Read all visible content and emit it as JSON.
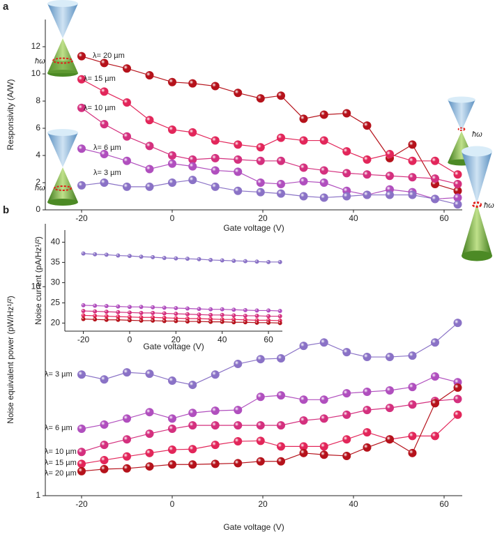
{
  "chart_data": [
    {
      "type": "line",
      "panel_label": "a",
      "xlabel": "Gate voltage (V)",
      "ylabel": "Responsivity (A/W)",
      "xlim": [
        -28,
        64
      ],
      "xticks": [
        -20,
        0,
        20,
        40,
        60
      ],
      "ylim": [
        0,
        14
      ],
      "yticks": [
        0,
        2,
        4,
        6,
        8,
        10,
        12
      ],
      "x": [
        -20,
        -15,
        -10,
        -5,
        0,
        4.5,
        9.5,
        14.5,
        19.5,
        24,
        29,
        33.5,
        38.5,
        43,
        48,
        53,
        58,
        63
      ],
      "series": [
        {
          "name": "λ= 20 µm",
          "color": "#b5121b",
          "values": [
            11.3,
            10.8,
            10.4,
            9.9,
            9.4,
            9.3,
            9.1,
            8.6,
            8.2,
            8.4,
            6.7,
            7.0,
            7.1,
            6.2,
            3.8,
            4.8,
            1.9,
            1.4
          ]
        },
        {
          "name": "λ= 15 µm",
          "color": "#e2265a",
          "values": [
            9.6,
            8.7,
            7.9,
            6.6,
            5.9,
            5.7,
            5.1,
            4.8,
            4.6,
            5.3,
            5.1,
            5.1,
            4.3,
            3.7,
            4.1,
            3.6,
            3.6,
            2.6
          ]
        },
        {
          "name": "λ= 10 µm",
          "color": "#d4307e",
          "values": [
            7.5,
            6.3,
            5.4,
            4.7,
            4.0,
            3.7,
            3.8,
            3.7,
            3.6,
            3.6,
            3.1,
            2.9,
            2.7,
            2.6,
            2.5,
            2.4,
            2.3,
            1.9
          ]
        },
        {
          "name": "λ= 6 µm",
          "color": "#b04fbe",
          "values": [
            4.5,
            4.1,
            3.6,
            3.0,
            3.4,
            3.2,
            2.9,
            2.8,
            2.0,
            1.9,
            2.1,
            2.0,
            1.4,
            1.1,
            1.5,
            1.3,
            0.8,
            0.9
          ]
        },
        {
          "name": "λ= 3 µm",
          "color": "#8a72c6",
          "values": [
            1.8,
            2.0,
            1.7,
            1.7,
            2.0,
            2.2,
            1.7,
            1.4,
            1.3,
            1.2,
            1.0,
            0.9,
            1.0,
            1.1,
            1.1,
            1.1,
            0.8,
            0.4
          ]
        }
      ]
    },
    {
      "type": "line",
      "panel_label": "b",
      "xlabel": "Gate voltage (V)",
      "ylabel": "Noise equivalent power (pW/Hz¹/²)",
      "log_y": true,
      "xlim": [
        -28,
        64
      ],
      "xticks": [
        -20,
        0,
        20,
        40,
        60
      ],
      "ylim": [
        1,
        20
      ],
      "yticks": [
        1,
        10
      ],
      "x": [
        -20,
        -15,
        -10,
        -5,
        0,
        4.5,
        9.5,
        14.5,
        19.5,
        24,
        29,
        33.5,
        38.5,
        43,
        48,
        53,
        58,
        63
      ],
      "series": [
        {
          "name": "λ= 3 µm",
          "color": "#8a72c6",
          "values": [
            3.8,
            3.6,
            3.89,
            3.83,
            3.55,
            3.39,
            3.8,
            4.27,
            4.5,
            4.54,
            5.21,
            5.41,
            4.86,
            4.61,
            4.61,
            4.68,
            5.41,
            6.71
          ]
        },
        {
          "name": "λ= 6 µm",
          "color": "#b04fbe",
          "values": [
            2.09,
            2.19,
            2.34,
            2.51,
            2.34,
            2.49,
            2.55,
            2.57,
            2.97,
            3.02,
            2.88,
            2.88,
            3.09,
            3.14,
            3.19,
            3.31,
            3.72,
            3.49
          ]
        },
        {
          "name": "λ= 10 µm",
          "color": "#d4307e",
          "values": [
            1.62,
            1.75,
            1.86,
            1.98,
            2.09,
            2.17,
            2.17,
            2.17,
            2.17,
            2.17,
            2.29,
            2.34,
            2.44,
            2.57,
            2.63,
            2.73,
            2.84,
            2.9
          ]
        },
        {
          "name": "λ= 15 µm",
          "color": "#e2265a",
          "values": [
            1.42,
            1.48,
            1.54,
            1.6,
            1.66,
            1.67,
            1.75,
            1.82,
            1.83,
            1.72,
            1.72,
            1.72,
            1.86,
            2.01,
            1.86,
            1.93,
            1.93,
            2.44
          ]
        },
        {
          "name": "λ= 20 µm",
          "color": "#b5121b",
          "values": [
            1.31,
            1.34,
            1.35,
            1.38,
            1.41,
            1.41,
            1.42,
            1.43,
            1.46,
            1.46,
            1.6,
            1.57,
            1.55,
            1.7,
            1.86,
            1.6,
            2.77,
            3.29
          ]
        }
      ]
    },
    {
      "type": "line",
      "xlabel": "Gate voltage (V)",
      "ylabel": "Noise current (pA/Hz¹/²)",
      "xlim": [
        -28,
        66
      ],
      "xticks": [
        -20,
        0,
        20,
        40,
        60
      ],
      "ylim": [
        18,
        43
      ],
      "yticks": [
        20,
        25,
        30,
        35,
        40
      ],
      "x": [
        -20,
        -15,
        -10,
        -5,
        0,
        5,
        10,
        15,
        20,
        25,
        30,
        35,
        40,
        45,
        50,
        55,
        60,
        65
      ],
      "series": [
        {
          "color": "#8a72c6",
          "values": [
            37.2,
            37.0,
            36.9,
            36.7,
            36.6,
            36.4,
            36.3,
            36.1,
            36.0,
            35.9,
            35.8,
            35.6,
            35.5,
            35.4,
            35.3,
            35.2,
            35.1,
            35.1
          ]
        },
        {
          "color": "#b04fbe",
          "values": [
            24.4,
            24.3,
            24.2,
            24.1,
            24.0,
            24.0,
            23.9,
            23.8,
            23.7,
            23.6,
            23.5,
            23.4,
            23.4,
            23.3,
            23.2,
            23.1,
            23.1,
            23.0
          ]
        },
        {
          "color": "#d4307e",
          "values": [
            23.0,
            22.9,
            22.8,
            22.7,
            22.6,
            22.5,
            22.5,
            22.4,
            22.3,
            22.2,
            22.1,
            22.0,
            22.0,
            21.9,
            21.8,
            21.8,
            21.7,
            21.7
          ]
        },
        {
          "color": "#e2265a",
          "values": [
            21.9,
            21.8,
            21.7,
            21.6,
            21.5,
            21.4,
            21.4,
            21.3,
            21.2,
            21.1,
            21.1,
            21.0,
            20.9,
            20.9,
            20.8,
            20.7,
            20.7,
            20.6
          ]
        },
        {
          "color": "#b5121b",
          "values": [
            21.0,
            20.9,
            20.8,
            20.8,
            20.7,
            20.6,
            20.6,
            20.5,
            20.5,
            20.4,
            20.4,
            20.3,
            20.3,
            20.2,
            20.2,
            20.1,
            20.1,
            20.0
          ]
        }
      ]
    }
  ],
  "illustration_label": "ħω"
}
